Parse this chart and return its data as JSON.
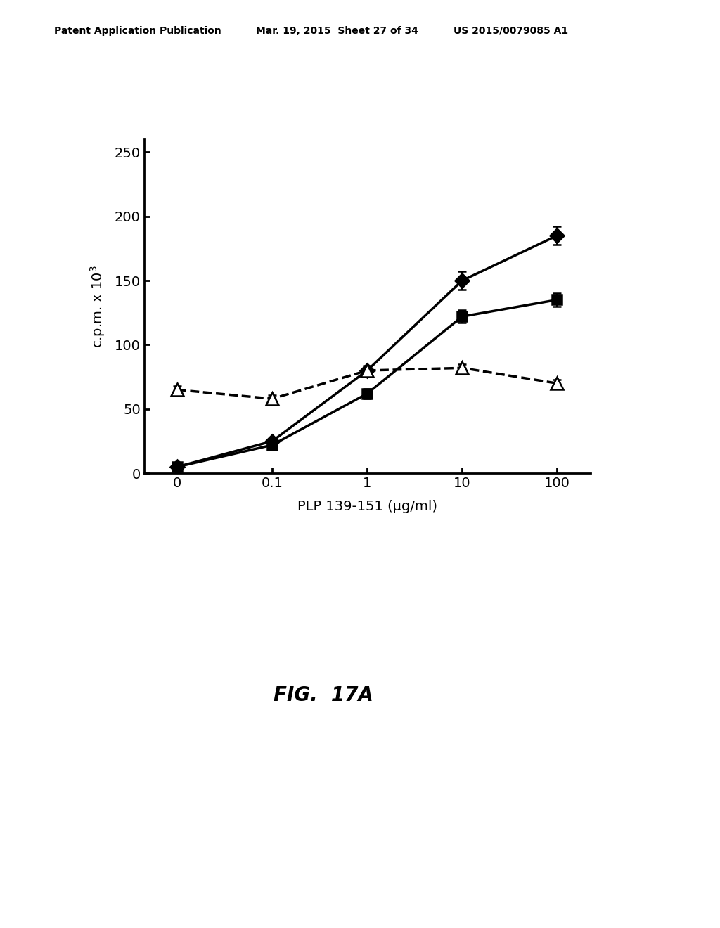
{
  "x_labels": [
    "0",
    "0.1",
    "1",
    "10",
    "100"
  ],
  "x_positions": [
    0,
    1,
    2,
    3,
    4
  ],
  "series": [
    {
      "name": "diamond_solid",
      "y": [
        5,
        25,
        80,
        150,
        185
      ],
      "yerr": [
        1,
        2,
        4,
        7,
        7
      ],
      "color": "#000000",
      "marker": "D",
      "linestyle": "-",
      "linewidth": 2.5,
      "markersize": 10,
      "markerfacecolor": "#000000"
    },
    {
      "name": "square_solid",
      "y": [
        5,
        22,
        62,
        122,
        135
      ],
      "yerr": [
        1,
        2,
        4,
        5,
        5
      ],
      "color": "#000000",
      "marker": "s",
      "linestyle": "-",
      "linewidth": 2.5,
      "markersize": 10,
      "markerfacecolor": "#000000"
    },
    {
      "name": "triangle_dashed",
      "y": [
        65,
        58,
        80,
        82,
        70
      ],
      "yerr": [
        3,
        3,
        3,
        3,
        3
      ],
      "color": "#000000",
      "marker": "^",
      "linestyle": "--",
      "linewidth": 2.5,
      "markersize": 13,
      "markerfacecolor": "white"
    }
  ],
  "ylabel_text": "c.p.m. x 10",
  "ylabel_exponent": "3",
  "xlabel": "PLP 139-151 (μg/ml)",
  "ylim": [
    0,
    260
  ],
  "yticks": [
    0,
    50,
    100,
    150,
    200,
    250
  ],
  "fig_label": "FIG.  17A",
  "header_left": "Patent Application Publication",
  "header_mid": "Mar. 19, 2015  Sheet 27 of 34",
  "header_right": "US 2015/0079085 A1",
  "background_color": "#ffffff"
}
